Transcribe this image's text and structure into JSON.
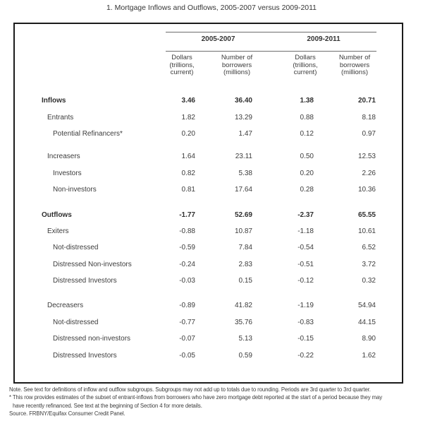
{
  "title": "1. Mortgage Inflows and Outflows, 2005-2007 versus 2009-2011",
  "table": {
    "col_groups": [
      {
        "label": "2005-2007"
      },
      {
        "label": "2009-2011"
      }
    ],
    "columns": [
      "Dollars\n(trillions,\ncurrent)",
      "Number of\nborrowers\n(millions)",
      "Dollars\n(trillions,\ncurrent)",
      "Number of\nborrowers\n(millions)"
    ],
    "rows": [
      {
        "label": "Inflows",
        "level": 0,
        "bold": true,
        "values": [
          "3.46",
          "36.40",
          "1.38",
          "20.71"
        ]
      },
      {
        "label": "Entrants",
        "level": 1,
        "bold": false,
        "values": [
          "1.82",
          "13.29",
          "0.88",
          "8.18"
        ]
      },
      {
        "label": "Potential Refinancers*",
        "level": 2,
        "bold": false,
        "values": [
          "0.20",
          "1.47",
          "0.12",
          "0.97"
        ]
      },
      {
        "spacer": true,
        "height": 9
      },
      {
        "label": "Increasers",
        "level": 1,
        "bold": false,
        "values": [
          "1.64",
          "23.11",
          "0.50",
          "12.53"
        ]
      },
      {
        "label": "Investors",
        "level": 2,
        "bold": false,
        "values": [
          "0.82",
          "5.38",
          "0.20",
          "2.26"
        ]
      },
      {
        "label": "Non-investors",
        "level": 2,
        "bold": false,
        "values": [
          "0.81",
          "17.64",
          "0.28",
          "10.36"
        ]
      },
      {
        "spacer": true,
        "height": 12
      },
      {
        "label": "Outflows",
        "level": 0,
        "bold": true,
        "values": [
          "-1.77",
          "52.69",
          "-2.37",
          "65.55"
        ]
      },
      {
        "label": "Exiters",
        "level": 1,
        "bold": false,
        "values": [
          "-0.88",
          "10.87",
          "-1.18",
          "10.61"
        ]
      },
      {
        "label": "Not-distressed",
        "level": 2,
        "bold": false,
        "values": [
          "-0.59",
          "7.84",
          "-0.54",
          "6.52"
        ]
      },
      {
        "label": "Distressed Non-investors",
        "level": 2,
        "bold": false,
        "values": [
          "-0.24",
          "2.83",
          "-0.51",
          "3.72"
        ]
      },
      {
        "label": "Distressed Investors",
        "level": 2,
        "bold": false,
        "values": [
          "-0.03",
          "0.15",
          "-0.12",
          "0.32"
        ]
      },
      {
        "spacer": true,
        "height": 12
      },
      {
        "label": "Decreasers",
        "level": 1,
        "bold": false,
        "values": [
          "-0.89",
          "41.82",
          "-1.19",
          "54.94"
        ]
      },
      {
        "label": "Not-distressed",
        "level": 2,
        "bold": false,
        "values": [
          "-0.77",
          "35.76",
          "-0.83",
          "44.15"
        ]
      },
      {
        "label": "Distressed non-investors",
        "level": 2,
        "bold": false,
        "values": [
          "-0.07",
          "5.13",
          "-0.15",
          "8.90"
        ]
      },
      {
        "label": "Distressed Investors",
        "level": 2,
        "bold": false,
        "values": [
          "-0.05",
          "0.59",
          "-0.22",
          "1.62"
        ]
      }
    ]
  },
  "notes": {
    "note": "Note. See text for definitions of inflow and outflow subgroups.  Subgroups may not add up to totals due to rounding.  Periods are 3rd quarter to 3rd quarter.",
    "footnote_line1": "* This row provides estimates of the subset of entrant-inflows from borrowers who have zero mortgage debt reported at the start of a period because they may",
    "footnote_line2": "have recently refinanced.  See text at the beginning of Section 4 for more details.",
    "source": "Source. FRBNY/Equifax Consumer Credit Panel."
  }
}
